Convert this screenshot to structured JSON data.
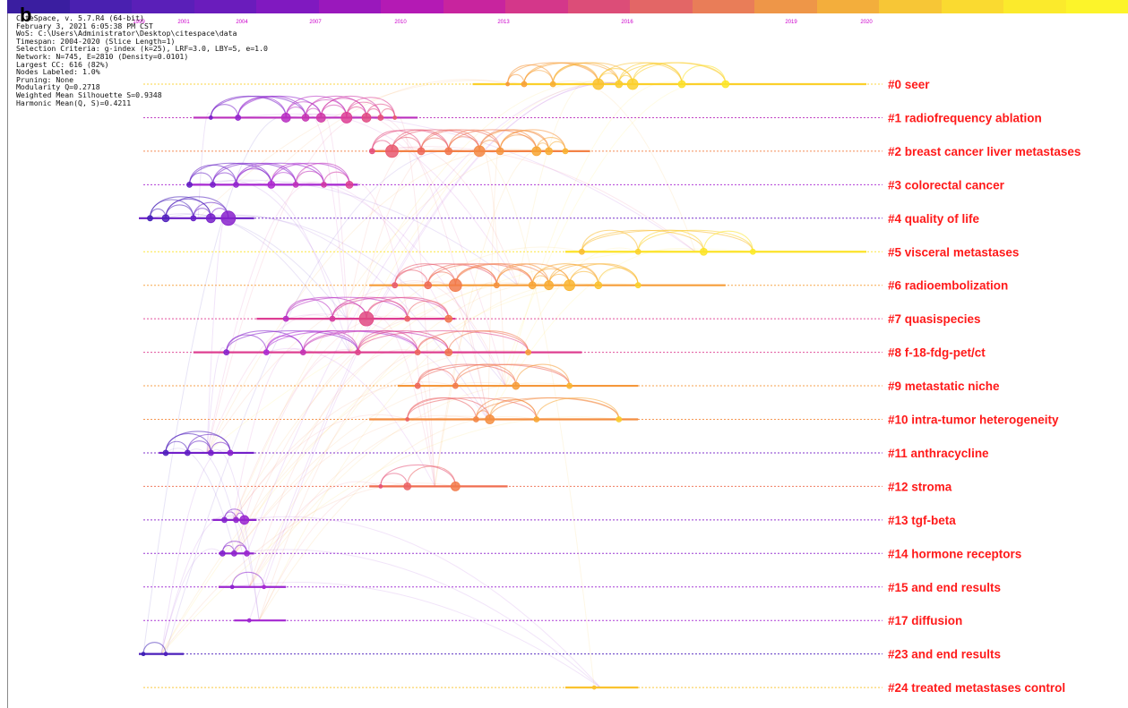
{
  "figure": {
    "panel_letter": "b",
    "colorbar": [
      "#3a1ea0",
      "#4a20b0",
      "#5a1fb8",
      "#6a1cbc",
      "#8019c0",
      "#9a18bc",
      "#b41ab4",
      "#c8249e",
      "#d4378a",
      "#dc4d78",
      "#e36666",
      "#e97d58",
      "#ee9648",
      "#f3ae3c",
      "#f7c636",
      "#fada30",
      "#fbea2c",
      "#fcf42a"
    ],
    "meta_lines": [
      "CiteSpace, v. 5.7.R4 (64-bit)",
      "February 3, 2021 6:05:38 PM CST",
      "WoS: C:\\Users\\Administrator\\Desktop\\citespace\\data",
      "Timespan: 2004-2020 (Slice Length=1)",
      "Selection Criteria: g-index (k=25), LRF=3.0, LBY=5, e=1.0",
      "Network: N=745, E=2810 (Density=0.0101)",
      "Largest CC: 616 (82%)",
      "Nodes Labeled: 1.0%",
      "Pruning: None",
      "Modularity Q=0.2718",
      "Weighted Mean Silhouette S=0.9348",
      "Harmonic Mean(Q, S)=0.4211"
    ]
  },
  "chart_data": {
    "type": "timeline",
    "x_axis_years": [
      "1999",
      "2001",
      "2004",
      "2007",
      "2010",
      "2013",
      "2016",
      "2019",
      "2020"
    ],
    "clusters": [
      {
        "label": "#0 seer",
        "start": 2012.1,
        "end": 2020,
        "nodes": [
          [
            2013.1,
            2
          ],
          [
            2013.5,
            3
          ],
          [
            2014.2,
            3
          ],
          [
            2015.3,
            6
          ],
          [
            2015.8,
            4
          ],
          [
            2016.1,
            6
          ],
          [
            2017.0,
            4
          ],
          [
            2017.8,
            4
          ]
        ]
      },
      {
        "label": "#1 radiofrequency ablation",
        "start": 2001.5,
        "end": 2010.5,
        "nodes": [
          [
            2002.4,
            2
          ],
          [
            2003.8,
            3
          ],
          [
            2005.8,
            5
          ],
          [
            2006.6,
            4
          ],
          [
            2007.2,
            5
          ],
          [
            2008.1,
            6
          ],
          [
            2008.8,
            5
          ],
          [
            2009.3,
            3
          ],
          [
            2009.8,
            2
          ]
        ]
      },
      {
        "label": "#2 breast cancer liver metastases",
        "start": 2008.9,
        "end": 2015.1,
        "nodes": [
          [
            2009.0,
            3
          ],
          [
            2009.7,
            7
          ],
          [
            2010.6,
            4
          ],
          [
            2011.4,
            4
          ],
          [
            2012.3,
            6
          ],
          [
            2012.9,
            4
          ],
          [
            2013.8,
            5
          ],
          [
            2014.1,
            4
          ],
          [
            2014.5,
            3
          ]
        ]
      },
      {
        "label": "#3 colorectal cancer",
        "start": 2001.2,
        "end": 2008.5,
        "nodes": [
          [
            2001.3,
            3
          ],
          [
            2002.5,
            3
          ],
          [
            2003.7,
            3
          ],
          [
            2005.2,
            4
          ],
          [
            2006.2,
            3
          ],
          [
            2007.3,
            3
          ],
          [
            2008.2,
            4
          ]
        ]
      },
      {
        "label": "#4 quality of life",
        "start": 1999.0,
        "end": 2004.5,
        "nodes": [
          [
            1999.5,
            3
          ],
          [
            2000.2,
            4
          ],
          [
            2001.5,
            3
          ],
          [
            2002.4,
            5
          ],
          [
            2003.3,
            8
          ]
        ]
      },
      {
        "label": "#5 visceral metastases",
        "start": 2014.5,
        "end": 2020,
        "nodes": [
          [
            2014.9,
            3
          ],
          [
            2016.2,
            3
          ],
          [
            2017.4,
            4
          ],
          [
            2018.3,
            3
          ]
        ]
      },
      {
        "label": "#6 radioembolization",
        "start": 2008.9,
        "end": 2017.8,
        "nodes": [
          [
            2009.8,
            3
          ],
          [
            2010.8,
            4
          ],
          [
            2011.6,
            7
          ],
          [
            2012.8,
            3
          ],
          [
            2013.7,
            4
          ],
          [
            2014.1,
            5
          ],
          [
            2014.6,
            6
          ],
          [
            2015.3,
            4
          ],
          [
            2016.2,
            3
          ]
        ]
      },
      {
        "label": "#7 quasispecies",
        "start": 2004.6,
        "end": 2011.6,
        "nodes": [
          [
            2005.8,
            3
          ],
          [
            2007.6,
            3
          ],
          [
            2008.8,
            8
          ],
          [
            2010.2,
            3
          ],
          [
            2011.4,
            4
          ]
        ]
      },
      {
        "label": "#8 f-18-fdg-pet/ct",
        "start": 2001.5,
        "end": 2014.9,
        "nodes": [
          [
            2003.2,
            3
          ],
          [
            2005.0,
            3
          ],
          [
            2006.5,
            3
          ],
          [
            2008.5,
            3
          ],
          [
            2010.5,
            3
          ],
          [
            2011.4,
            4
          ],
          [
            2013.6,
            3
          ]
        ]
      },
      {
        "label": "#9 metastatic niche",
        "start": 2009.9,
        "end": 2016.2,
        "nodes": [
          [
            2010.5,
            3
          ],
          [
            2011.6,
            3
          ],
          [
            2013.3,
            4
          ],
          [
            2014.6,
            3
          ]
        ]
      },
      {
        "label": "#10 intra-tumor heterogeneity",
        "start": 2008.9,
        "end": 2016.2,
        "nodes": [
          [
            2010.2,
            2
          ],
          [
            2012.2,
            3
          ],
          [
            2012.6,
            5
          ],
          [
            2013.8,
            3
          ],
          [
            2015.8,
            3
          ]
        ]
      },
      {
        "label": "#11 anthracycline",
        "start": 1999.9,
        "end": 2004.5,
        "nodes": [
          [
            2000.2,
            3
          ],
          [
            2001.2,
            3
          ],
          [
            2002.4,
            3
          ],
          [
            2003.4,
            3
          ]
        ]
      },
      {
        "label": "#12 stroma",
        "start": 2008.9,
        "end": 2013.1,
        "nodes": [
          [
            2009.3,
            2
          ],
          [
            2010.2,
            4
          ],
          [
            2011.6,
            5
          ]
        ]
      },
      {
        "label": "#13 tgf-beta",
        "start": 2002.5,
        "end": 2004.6,
        "nodes": [
          [
            2003.1,
            3
          ],
          [
            2003.7,
            3
          ],
          [
            2004.1,
            5
          ]
        ]
      },
      {
        "label": "#14 hormone receptors",
        "start": 2002.8,
        "end": 2004.5,
        "nodes": [
          [
            2003.0,
            3
          ],
          [
            2003.6,
            3
          ],
          [
            2004.2,
            3
          ]
        ]
      },
      {
        "label": "#15 and end results",
        "start": 2002.8,
        "end": 2005.8,
        "nodes": [
          [
            2003.5,
            2
          ],
          [
            2004.9,
            2
          ]
        ]
      },
      {
        "label": "#17 diffusion",
        "start": 2003.6,
        "end": 2005.8,
        "nodes": [
          [
            2004.3,
            2
          ]
        ]
      },
      {
        "label": "#23 and end results",
        "start": 1999.0,
        "end": 2001.0,
        "nodes": [
          [
            1999.2,
            2
          ],
          [
            2000.2,
            2
          ]
        ]
      },
      {
        "label": "#24 treated metastases control",
        "start": 2014.5,
        "end": 2016.2,
        "nodes": [
          [
            2015.2,
            2
          ]
        ]
      }
    ]
  }
}
